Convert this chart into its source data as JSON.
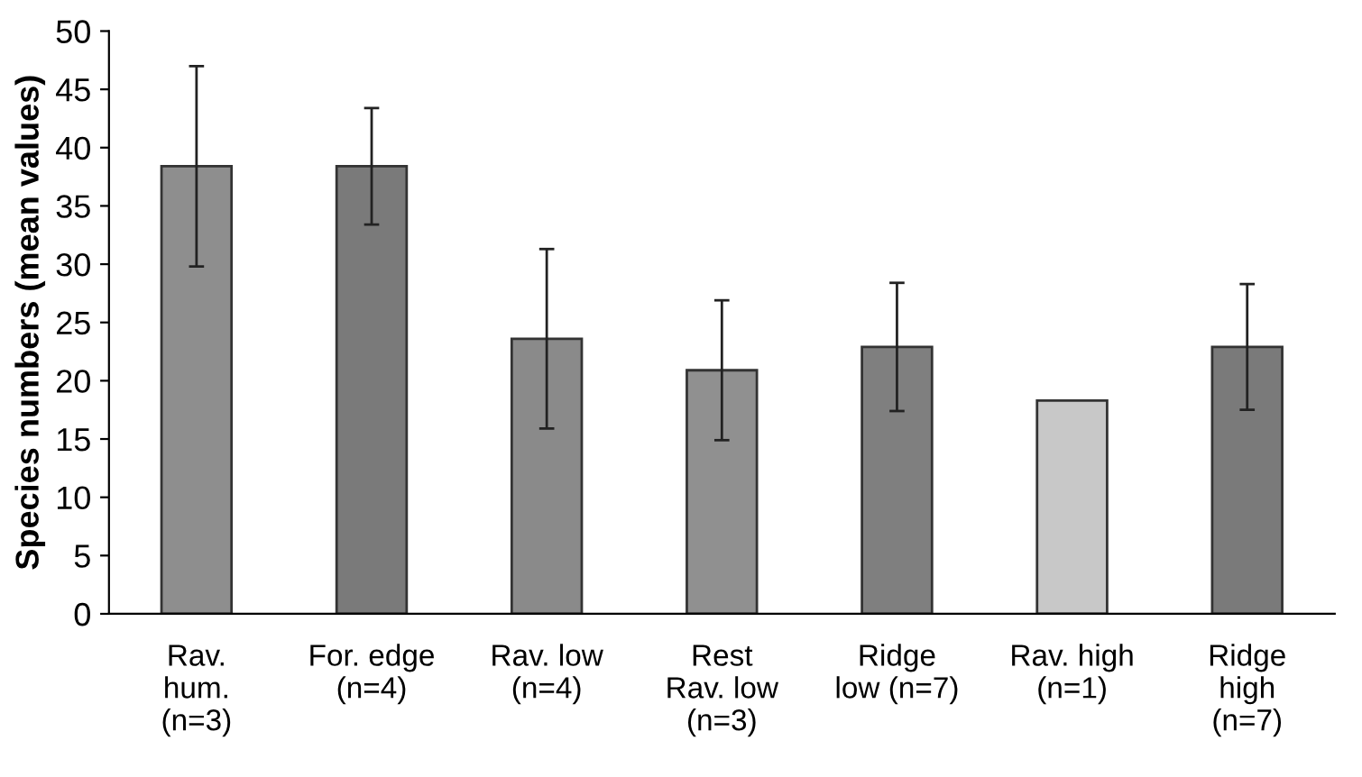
{
  "chart_data": {
    "type": "bar",
    "ylabel": "Species numbers (mean values)",
    "categories": [
      "Rav.\nhum.\n(n=3)",
      "For. edge\n(n=4)",
      "Rav. low\n(n=4)",
      "Rest\nRav. low\n(n=3)",
      "Ridge\nlow (n=7)",
      "Rav. high\n(n=1)",
      "Ridge\nhigh\n(n=7)"
    ],
    "values": [
      38.4,
      38.4,
      23.6,
      20.9,
      22.9,
      18.3,
      22.9
    ],
    "errors": [
      8.6,
      5.0,
      7.7,
      6.0,
      5.5,
      null,
      5.4
    ],
    "colors": [
      "#8e8e8e",
      "#7a7a7a",
      "#8a8a8a",
      "#909090",
      "#7f7f7f",
      "#c8c8c8",
      "#7a7a7a"
    ],
    "ylim": [
      0,
      50
    ],
    "yticks": [
      0,
      5,
      10,
      15,
      20,
      25,
      30,
      35,
      40,
      45,
      50
    ],
    "grid": false
  }
}
